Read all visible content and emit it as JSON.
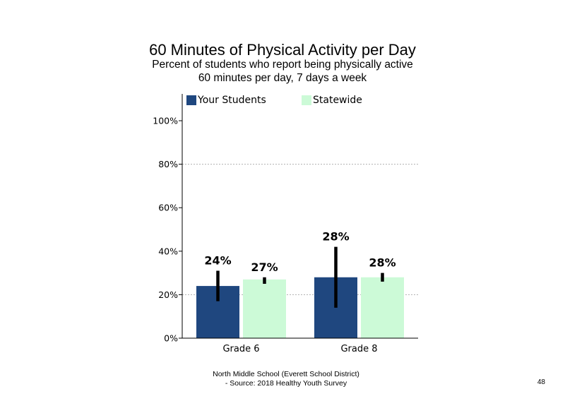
{
  "chart_data": {
    "type": "bar",
    "title": "60 Minutes of Physical Activity per Day",
    "subtitle": [
      "Percent of students who report being physically active",
      "60 minutes per day, 7 days a week"
    ],
    "categories": [
      "Grade 6",
      "Grade 8"
    ],
    "series": [
      {
        "name": "Your Students",
        "values": [
          24,
          28
        ],
        "error_low": [
          17,
          14
        ],
        "error_high": [
          31,
          42
        ],
        "data_labels": [
          "24%",
          "28%"
        ],
        "color": "#1f477f"
      },
      {
        "name": "Statewide",
        "values": [
          27,
          28
        ],
        "error_low": [
          25,
          26
        ],
        "error_high": [
          28,
          30
        ],
        "data_labels": [
          "27%",
          "28%"
        ],
        "color": "#ccfad7"
      }
    ],
    "ylim": [
      0,
      100
    ],
    "yticks": [
      0,
      20,
      40,
      60,
      80,
      100
    ],
    "ytick_labels": [
      "0%",
      "20%",
      "40%",
      "60%",
      "80%",
      "100%"
    ],
    "grid": "dotted horizontal at 20% and 80%",
    "legend_position": "top"
  },
  "footer": {
    "line1": "North Middle School (Everett School District)",
    "line2": "- Source: 2018 Healthy Youth Survey"
  },
  "page_number": "48"
}
